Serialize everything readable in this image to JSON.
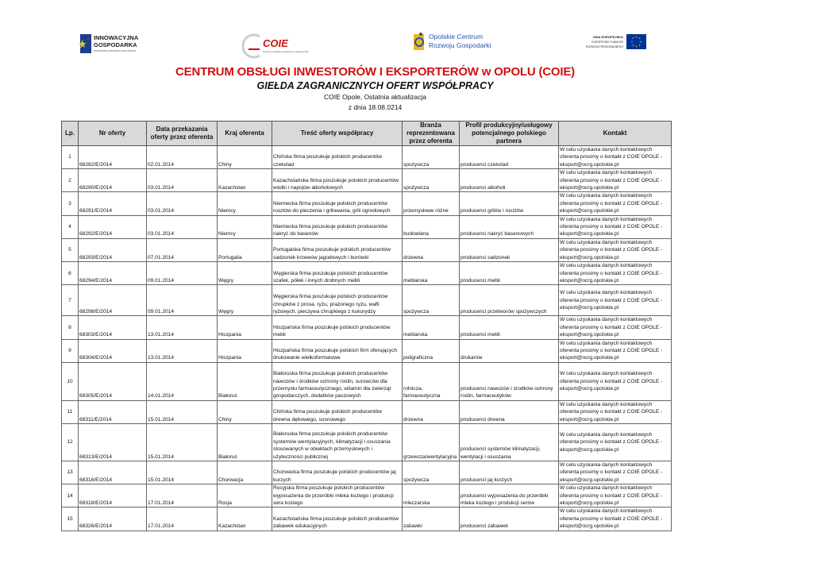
{
  "logos": {
    "innowacyjna": {
      "line1": "INNOWACYJNA",
      "line2": "GOSPODARKA",
      "line3": "NARODOWA STRATEGIA SPÓJNOŚCI"
    },
    "coie": {
      "text": "COIE",
      "sub": "Centrum Obsługi Inwestorów i Eksporterów"
    },
    "ocrg": {
      "line1": "Opolskie Centrum",
      "line2": "Rozwoju Gospodarki"
    },
    "ue": {
      "line1": "UNIA EUROPEJSKA",
      "line2": "EUROPEJSKI FUNDUSZ",
      "line3": "ROZWOJU REGIONALNEGO"
    }
  },
  "header": {
    "title": "CENTRUM OBSŁUGI INWESTORÓW I EKSPORTERÓW w OPOLU (COIE)",
    "subtitle": "GIEŁDA ZAGRANICZNYCH OFERT WSPÓŁPRACY",
    "update_line1": "COIE Opole, Ostatnia aktualizacja",
    "update_line2": "z dnia 18.08.0214"
  },
  "colors": {
    "title_red": "#d01010",
    "header_gray": "#d9d9d9",
    "eu_blue": "#003399"
  },
  "table": {
    "columns": [
      "Lp.",
      "Nr oferty",
      "Data przekazania oferty przez oferenta",
      "Kraj oferenta",
      "Treść oferty współpracy",
      "Branża reprezentowana przez oferenta",
      "Profil produkcyjny/usługowy potencjalnego polskiego partnera",
      "Kontakt"
    ],
    "contact": "W celu uzyskania danych kontaktowych\noferenta prosimy o kontakt z COIE OPOLE -\neksport@ocrg.opolskie.pl",
    "rows": [
      {
        "lp": "1",
        "nr": "68282/E/2014",
        "data": "02.01.2014",
        "kraj": "Chiny",
        "tresc": "Chińska firma poszukuje polskich producentów czekolad",
        "branza": "spożywcza",
        "profil": "producenci czekolad"
      },
      {
        "lp": "2",
        "nr": "68290/E/2014",
        "data": "03.01.2014",
        "kraj": "Kazachstan",
        "tresc": "Kazachstańska firma poszukuje polskich producentów\nwódki i napojów alkoholowych",
        "branza": "spożywcza",
        "profil": "producenci alkoholi"
      },
      {
        "lp": "3",
        "nr": "68291/E/2014",
        "data": "03.01.2014",
        "kraj": "Niemcy",
        "tresc": "Niemiecka firma poszukuje polskich producentów\nrusztów do pieczenia i grilowania, grili ogrodowych",
        "branza": "przemysłowe różne",
        "profil": "producenci grilów i rusztów"
      },
      {
        "lp": "4",
        "nr": "68292/E/2014",
        "data": "03.01.2014",
        "kraj": "Niemcy",
        "tresc": "Niemiecka firma poszukuje polskich producentów\nnakryć do basenów",
        "branza": "budowlana",
        "profil": "producenci  nakryć basenowych"
      },
      {
        "lp": "5",
        "nr": "68293/E/2014",
        "data": "07.01.2014",
        "kraj": "Portugalia",
        "tresc": "Portugalska firma poszukuje polskich producentów\nsadzonek krzewów jagodowych i borówki",
        "branza": "drzewna",
        "profil": "producenci sadzonek"
      },
      {
        "lp": "6",
        "nr": "68294/E/2014",
        "data": "09.01.2014",
        "kraj": "Węgry",
        "tresc": "Węgierska firma poszukuje polskich producentów\nszafek, półek i innych drobnych mebli",
        "branza": "meblarska",
        "profil": "producenci mebli"
      },
      {
        "lp": "7",
        "nr": "68298/E/2014",
        "data": "09.01.2014",
        "kraj": "Węgry",
        "tresc": "Węgierska firma poszukuje polskich producentów\nchrupków z prosa, ryżu, prażonego ryżu, wafli\nryżowych, pieczywa chrupkiego z kukurydzy",
        "branza": "spożywcza",
        "profil": "producenci przetworów spożywczych"
      },
      {
        "lp": "8",
        "nr": "68303/E/2014",
        "data": "13.01.2014",
        "kraj": "Hiszpania",
        "tresc": "Hiszpańska firma poszukuje polskich producentów\nmebli",
        "branza": "meblarska",
        "profil": "producenci mebli"
      },
      {
        "lp": "9",
        "nr": "68304/E/2014",
        "data": "13.01.2014",
        "kraj": "Hiszpania",
        "tresc": "Hiszpańska firma poszukuje polskich firm oferujących\ndrukowanie wielkoformatowe",
        "branza": "poligraficzna",
        "profil": "drukarnie"
      },
      {
        "lp": "10",
        "nr": "68305/E/2014",
        "data": "14.01.2014",
        "kraj": "Białoruś",
        "tresc": "Białoruska firma poszukuje polskich producentów\nnawozów i środków ochrony roślin, surowców dla\nprzemysłu farmaceutycznego, witamin dla zwierząt\ngospodarczych, dodatków paszowych",
        "branza": "rolnicza, farmaceutyczna",
        "profil": "producenci nawozów i środków ochrony\nroślin, farmaceutyków"
      },
      {
        "lp": "11",
        "nr": "68311/E/2014",
        "data": "15.01.2014",
        "kraj": "Chiny",
        "tresc": "Chińska firma poszukuje polskich producentów\ndrewna dębowego, sosnowego",
        "branza": "drzewna",
        "profil": "producenci drewna"
      },
      {
        "lp": "12",
        "nr": "68313/E/2014",
        "data": "15.01.2014",
        "kraj": "Białoruś",
        "tresc": "Białoruska firma poszukuje polskich producentów\nsystemów wentylacyjnych, klimatyzacji i osuszania\nstosowanych w obiektach przemysłowych i\nużyteczności publicznej",
        "branza": "grzewcza/wentylacyjna",
        "profil": "producenci systemów klimatyzacji,\nwentylacji i osuszania"
      },
      {
        "lp": "13",
        "nr": "68316/E/2014",
        "data": "15.01.2014",
        "kraj": "Chorwacja",
        "tresc": "Chorwacka firma poszukuje polskich producentów jaj\nkurzych",
        "branza": "spożywcza",
        "profil": "producenci jaj kurzych"
      },
      {
        "lp": "14",
        "nr": "68318/E/2014",
        "data": "17.01.2014",
        "kraj": "Rosja",
        "tresc": "Rosyjska firma poszukuje polskich producentów\nwyposażenia do przeróbki mleka koziego i produkcji\nsera koziego",
        "branza": "mleczarska",
        "profil": "producenci wyposażenia do przeróbki\nmleka koziego i produkcji serów"
      },
      {
        "lp": "15",
        "nr": "68326/E/2014",
        "data": "17.01.2014",
        "kraj": "Kazachstan",
        "tresc": "Kazachstańska firma poszukuje polskich producentów\nzabawek edukacyjnych",
        "branza": "zabawki",
        "profil": "producenci zabawek"
      }
    ]
  }
}
